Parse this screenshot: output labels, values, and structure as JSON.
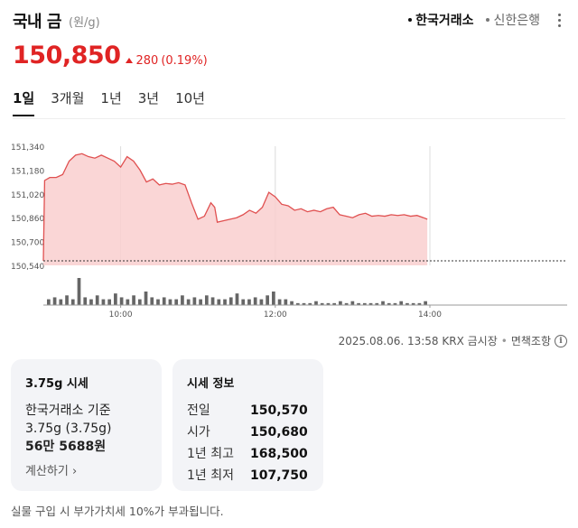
{
  "header": {
    "title": "국내 금",
    "unit": "(원/g)",
    "sources": [
      {
        "label": "한국거래소",
        "active": true
      },
      {
        "label": "신한은행",
        "active": false
      }
    ]
  },
  "quote": {
    "price": "150,850",
    "change": "280",
    "change_pct": "(0.19%)",
    "direction": "up"
  },
  "tabs": [
    "1일",
    "3개월",
    "1년",
    "3년",
    "10년"
  ],
  "active_tab": "1일",
  "colors": {
    "up": "#e02424",
    "fill": "#f9cfcf",
    "line": "#e05050",
    "volume": "#666666"
  },
  "chart_data": {
    "type": "line",
    "y_ticks": [
      "151,340",
      "151,180",
      "151,020",
      "150,860",
      "150,700",
      "150,540"
    ],
    "x_ticks": [
      "10:00",
      "12:00",
      "14:00"
    ],
    "baseline": 150570,
    "ylim": [
      150540,
      151340
    ],
    "price_series": [
      [
        "09:00",
        150570
      ],
      [
        "09:01",
        151110
      ],
      [
        "09:05",
        151130
      ],
      [
        "09:10",
        151130
      ],
      [
        "09:15",
        151150
      ],
      [
        "09:20",
        151240
      ],
      [
        "09:25",
        151280
      ],
      [
        "09:30",
        151290
      ],
      [
        "09:35",
        151270
      ],
      [
        "09:40",
        151260
      ],
      [
        "09:45",
        151280
      ],
      [
        "09:50",
        151260
      ],
      [
        "09:55",
        151240
      ],
      [
        "10:00",
        151200
      ],
      [
        "10:05",
        151270
      ],
      [
        "10:10",
        151240
      ],
      [
        "10:15",
        151180
      ],
      [
        "10:20",
        151100
      ],
      [
        "10:25",
        151120
      ],
      [
        "10:30",
        151080
      ],
      [
        "10:35",
        151090
      ],
      [
        "10:40",
        151085
      ],
      [
        "10:45",
        151095
      ],
      [
        "10:50",
        151080
      ],
      [
        "10:55",
        150960
      ],
      [
        "11:00",
        150850
      ],
      [
        "11:05",
        150870
      ],
      [
        "11:10",
        150960
      ],
      [
        "11:13",
        150930
      ],
      [
        "11:15",
        150830
      ],
      [
        "11:20",
        150840
      ],
      [
        "11:25",
        150850
      ],
      [
        "11:30",
        150860
      ],
      [
        "11:35",
        150880
      ],
      [
        "11:40",
        150910
      ],
      [
        "11:45",
        150890
      ],
      [
        "11:50",
        150930
      ],
      [
        "11:55",
        151030
      ],
      [
        "12:00",
        151000
      ],
      [
        "12:05",
        150950
      ],
      [
        "12:10",
        150940
      ],
      [
        "12:15",
        150910
      ],
      [
        "12:20",
        150920
      ],
      [
        "12:25",
        150900
      ],
      [
        "12:30",
        150910
      ],
      [
        "12:35",
        150900
      ],
      [
        "12:40",
        150920
      ],
      [
        "12:45",
        150930
      ],
      [
        "12:50",
        150880
      ],
      [
        "12:55",
        150870
      ],
      [
        "13:00",
        150860
      ],
      [
        "13:05",
        150880
      ],
      [
        "13:10",
        150890
      ],
      [
        "13:15",
        150870
      ],
      [
        "13:20",
        150875
      ],
      [
        "13:25",
        150870
      ],
      [
        "13:30",
        150880
      ],
      [
        "13:35",
        150875
      ],
      [
        "13:40",
        150880
      ],
      [
        "13:45",
        150870
      ],
      [
        "13:50",
        150875
      ],
      [
        "13:55",
        150860
      ],
      [
        "13:58",
        150850
      ]
    ],
    "volume_series": [
      3,
      4,
      3,
      5,
      3,
      14,
      4,
      3,
      5,
      3,
      3,
      6,
      4,
      3,
      5,
      3,
      7,
      4,
      3,
      4,
      3,
      3,
      5,
      3,
      4,
      3,
      5,
      4,
      3,
      3,
      4,
      6,
      3,
      3,
      4,
      3,
      5,
      7,
      3,
      3,
      2,
      1,
      1,
      1,
      2,
      1,
      1,
      1,
      2,
      1,
      2,
      1,
      1,
      1,
      1,
      2,
      1,
      1,
      2,
      1,
      1,
      1,
      2
    ]
  },
  "timestamp": {
    "text": "2025.08.06. 13:58 KRX 금시장",
    "disclaimer": "면책조항"
  },
  "card_price": {
    "title": "3.75g 시세",
    "line1": "한국거래소 기준",
    "line2": "3.75g (3.75g)",
    "value": "56만 5688원",
    "link": "계산하기"
  },
  "card_info": {
    "title": "시세 정보",
    "rows": [
      {
        "label": "전일",
        "value": "150,570"
      },
      {
        "label": "시가",
        "value": "150,680"
      },
      {
        "label": "1년 최고",
        "value": "168,500"
      },
      {
        "label": "1년 최저",
        "value": "107,750"
      }
    ]
  },
  "footnote": "실물 구입 시 부가가치세 10%가 부과됩니다."
}
